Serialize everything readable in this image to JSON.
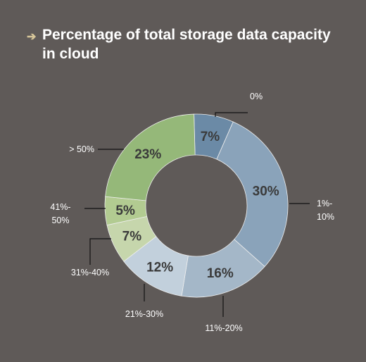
{
  "title": "Percentage of total storage data capacity in cloud",
  "colors": {
    "background": "#5f5a58",
    "arrow": "#d8c79a"
  },
  "icons": {
    "title_bullet": "arrow-right-icon"
  },
  "chart_data": {
    "type": "pie",
    "donut": true,
    "title": "Percentage of total storage data capacity in cloud",
    "categories": [
      "0%",
      "1%-10%",
      "11%-20%",
      "21%-30%",
      "31%-40%",
      "41%-50%",
      "> 50%"
    ],
    "values": [
      7,
      30,
      16,
      12,
      7,
      5,
      23
    ],
    "value_labels": [
      "7%",
      "30%",
      "16%",
      "12%",
      "7%",
      "5%",
      "23%"
    ],
    "colors": [
      "#6b8aa6",
      "#8aa3ba",
      "#a4b7c8",
      "#c2d0dc",
      "#c6d6ac",
      "#b2cb91",
      "#95b879"
    ],
    "legend": "none"
  }
}
